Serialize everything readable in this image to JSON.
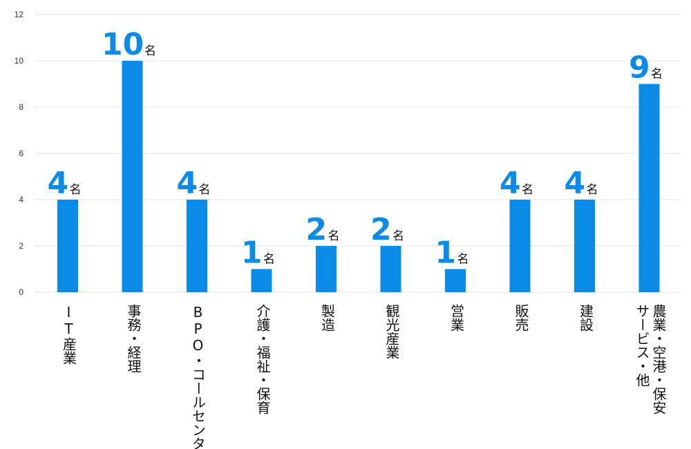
{
  "chart_data": {
    "type": "bar",
    "categories": [
      "IT産業",
      "事務・経理",
      "BPO・コールセンター",
      "介護・福祉・保育",
      "製造",
      "観光産業",
      "営業",
      "販売",
      "建設",
      "農業・空港・保安サービス・他"
    ],
    "category_lines": [
      [
        "IT産業"
      ],
      [
        "事務・経理"
      ],
      [
        "BPO・コールセンター"
      ],
      [
        "介護・福祉・保育"
      ],
      [
        "製造"
      ],
      [
        "観光産業"
      ],
      [
        "営業"
      ],
      [
        "販売"
      ],
      [
        "建設"
      ],
      [
        "農業・空港・保安",
        "サービス・他"
      ]
    ],
    "values": [
      4,
      10,
      4,
      1,
      2,
      2,
      1,
      4,
      4,
      9
    ],
    "value_unit": "名",
    "ylim": [
      0,
      12
    ],
    "yticks": [
      "0",
      "2",
      "4",
      "6",
      "8",
      "10",
      "12"
    ],
    "grid": true,
    "bar_color": "#0a8be8",
    "grid_color": "#e2e2e2"
  }
}
